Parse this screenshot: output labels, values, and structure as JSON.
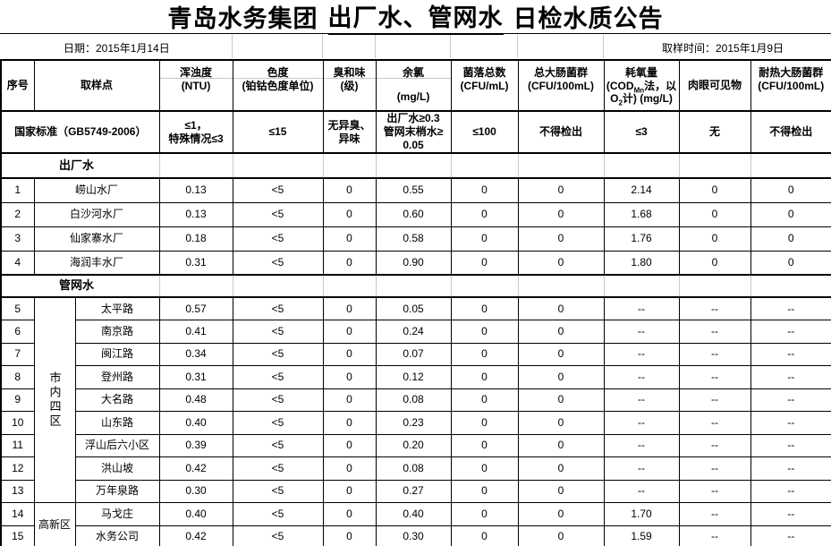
{
  "title": {
    "part1": "青岛水务集团",
    "part2": "出厂水、管网水",
    "part3": "日检水质公告"
  },
  "meta": {
    "date": "日期：2015年1月14日",
    "sample_time": "取样时间：2015年1月9日"
  },
  "header": {
    "seq": "序号",
    "site": "取样点",
    "turbidity": {
      "name": "浑浊度",
      "unit": "(NTU)"
    },
    "chroma": {
      "name": "色度",
      "unit": "(铂钴色度单位)"
    },
    "odor": {
      "name": "臭和味",
      "unit": "(级)"
    },
    "chlorine": {
      "name": "余氯",
      "unit": "(mg/L)"
    },
    "colony": {
      "name": "菌落总数",
      "unit": "(CFU/mL)"
    },
    "coliform": {
      "name": "总大肠菌群",
      "unit": "(CFU/100mL)"
    },
    "cod": {
      "name": "耗氧量",
      "u1": "(COD",
      "sub1": "Mn",
      "u2": "法，以O",
      "sub2": "2",
      "u3": "计) (mg/L)"
    },
    "visible": {
      "name": "肉眼可见物"
    },
    "thermo": {
      "name": "耐热大肠菌群",
      "unit": "(CFU/100mL)"
    }
  },
  "standard": {
    "label": "国家标准（GB5749-2006）",
    "turbidity": [
      "≤1，",
      "特殊情况≤3"
    ],
    "chroma": "≤15",
    "odor": [
      "无异臭、",
      "异味"
    ],
    "chlorine": [
      "出厂水≥0.3",
      "管网末梢水≥",
      "0.05"
    ],
    "colony": "≤100",
    "coliform": "不得检出",
    "cod": "≤3",
    "visible": "无",
    "thermo": "不得检出"
  },
  "sections": {
    "factory": "出厂水",
    "network": "管网水"
  },
  "factory_rows": [
    {
      "no": "1",
      "site": "崂山水厂",
      "values": [
        "0.13",
        "<5",
        "0",
        "0.55",
        "0",
        "0",
        "2.14",
        "0",
        "0"
      ]
    },
    {
      "no": "2",
      "site": "白沙河水厂",
      "values": [
        "0.13",
        "<5",
        "0",
        "0.60",
        "0",
        "0",
        "1.68",
        "0",
        "0"
      ]
    },
    {
      "no": "3",
      "site": "仙家寨水厂",
      "values": [
        "0.18",
        "<5",
        "0",
        "0.58",
        "0",
        "0",
        "1.76",
        "0",
        "0"
      ]
    },
    {
      "no": "4",
      "site": "海润丰水厂",
      "values": [
        "0.31",
        "<5",
        "0",
        "0.90",
        "0",
        "0",
        "1.80",
        "0",
        "0"
      ]
    }
  ],
  "network_rows": [
    {
      "no": "5",
      "region": "市内四区",
      "region_span": 9,
      "vertical": true,
      "site": "太平路",
      "values": [
        "0.57",
        "<5",
        "0",
        "0.05",
        "0",
        "0",
        "--",
        "--",
        "--"
      ]
    },
    {
      "no": "6",
      "site": "南京路",
      "values": [
        "0.41",
        "<5",
        "0",
        "0.24",
        "0",
        "0",
        "--",
        "--",
        "--"
      ]
    },
    {
      "no": "7",
      "site": "闽江路",
      "values": [
        "0.34",
        "<5",
        "0",
        "0.07",
        "0",
        "0",
        "--",
        "--",
        "--"
      ]
    },
    {
      "no": "8",
      "site": "登州路",
      "values": [
        "0.31",
        "<5",
        "0",
        "0.12",
        "0",
        "0",
        "--",
        "--",
        "--"
      ]
    },
    {
      "no": "9",
      "site": "大名路",
      "values": [
        "0.48",
        "<5",
        "0",
        "0.08",
        "0",
        "0",
        "--",
        "--",
        "--"
      ]
    },
    {
      "no": "10",
      "site": "山东路",
      "values": [
        "0.40",
        "<5",
        "0",
        "0.23",
        "0",
        "0",
        "--",
        "--",
        "--"
      ]
    },
    {
      "no": "11",
      "site": "浮山后六小区",
      "values": [
        "0.39",
        "<5",
        "0",
        "0.20",
        "0",
        "0",
        "--",
        "--",
        "--"
      ]
    },
    {
      "no": "12",
      "site": "洪山坡",
      "values": [
        "0.42",
        "<5",
        "0",
        "0.08",
        "0",
        "0",
        "--",
        "--",
        "--"
      ]
    },
    {
      "no": "13",
      "site": "万年泉路",
      "values": [
        "0.30",
        "<5",
        "0",
        "0.27",
        "0",
        "0",
        "--",
        "--",
        "--"
      ]
    },
    {
      "no": "14",
      "region": "高新区",
      "region_span": 2,
      "vertical": false,
      "site": "马戈庄",
      "values": [
        "0.40",
        "<5",
        "0",
        "0.40",
        "0",
        "0",
        "1.70",
        "--",
        "--"
      ]
    },
    {
      "no": "15",
      "site": "水务公司",
      "values": [
        "0.42",
        "<5",
        "0",
        "0.30",
        "0",
        "0",
        "1.59",
        "--",
        "--"
      ]
    }
  ],
  "colors": {
    "border": "#000000",
    "gridline": "#c9c9c9",
    "background": "#ffffff",
    "text": "#000000"
  }
}
